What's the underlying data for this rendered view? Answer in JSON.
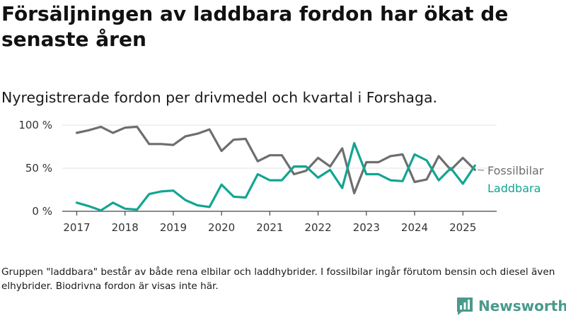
{
  "header": {
    "title": "Försäljningen av laddbara fordon har ökat de senaste åren",
    "subtitle": "Nyregistrerade fordon per drivmedel och kvartal i Forshaga."
  },
  "footnote": "Gruppen \"laddbara\" består av både rena elbilar och laddhybrider. I fossilbilar ingår förutom bensin och diesel även elhybrider. Biodrivna fordon är visas inte här.",
  "brand": {
    "name": "Newsworthy",
    "color": "#4a9a8c",
    "logo_icon": "bar-chart-speech-bubble-icon"
  },
  "chart_data": {
    "type": "line",
    "y_tick_labels": [
      "0 %",
      "50 %",
      "100 %"
    ],
    "y_ticks": [
      0,
      50,
      100
    ],
    "ylim": [
      0,
      100
    ],
    "x_tick_labels": [
      "2017",
      "2018",
      "2019",
      "2020",
      "2021",
      "2022",
      "2023",
      "2024",
      "2025"
    ],
    "x_ticks": [
      2017,
      2018,
      2019,
      2020,
      2021,
      2022,
      2023,
      2024,
      2025
    ],
    "xlim": [
      2016.7,
      2025.7
    ],
    "x": [
      2017.0,
      2017.25,
      2017.5,
      2017.75,
      2018.0,
      2018.25,
      2018.5,
      2018.75,
      2019.0,
      2019.25,
      2019.5,
      2019.75,
      2020.0,
      2020.25,
      2020.5,
      2020.75,
      2021.0,
      2021.25,
      2021.5,
      2021.75,
      2022.0,
      2022.25,
      2022.5,
      2022.75,
      2023.0,
      2023.25,
      2023.5,
      2023.75,
      2024.0,
      2024.25,
      2024.5,
      2024.75,
      2025.0,
      2025.25
    ],
    "grid": true,
    "legend": "right, at line ends",
    "series": [
      {
        "name": "Fossilbilar",
        "color": "#6e6e6e",
        "values": [
          91,
          94,
          98,
          91,
          97,
          98,
          78,
          78,
          77,
          87,
          90,
          95,
          70,
          83,
          84,
          58,
          65,
          65,
          43,
          47,
          62,
          52,
          73,
          21,
          57,
          57,
          64,
          66,
          34,
          37,
          64,
          48,
          62,
          48
        ]
      },
      {
        "name": "Laddbara",
        "color": "#12a592",
        "values": [
          10,
          6,
          1,
          10,
          3,
          2,
          20,
          23,
          24,
          13,
          7,
          5,
          31,
          17,
          16,
          43,
          36,
          36,
          52,
          52,
          39,
          48,
          27,
          79,
          43,
          43,
          36,
          35,
          66,
          59,
          36,
          50,
          32,
          53
        ]
      }
    ]
  }
}
